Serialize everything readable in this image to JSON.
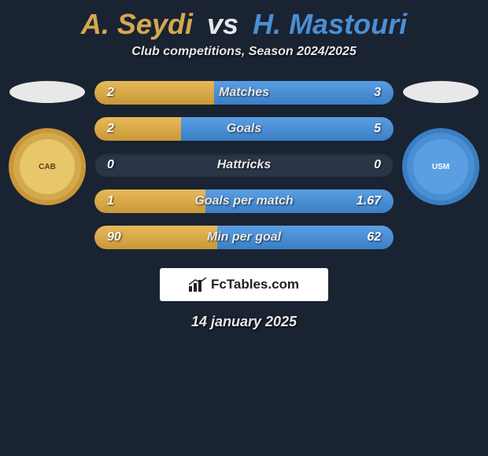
{
  "title": {
    "playerA": "A. Seydi",
    "vs": "vs",
    "playerB": "H. Mastouri",
    "colorA": "#d4a94e",
    "colorB": "#4a8fd4"
  },
  "subtitle": "Club competitions, Season 2024/2025",
  "rows": [
    {
      "label": "Matches",
      "a": "2",
      "b": "3",
      "pctA": 40,
      "pctB": 60
    },
    {
      "label": "Goals",
      "a": "2",
      "b": "5",
      "pctA": 29,
      "pctB": 71
    },
    {
      "label": "Hattricks",
      "a": "0",
      "b": "0",
      "pctA": 0,
      "pctB": 0
    },
    {
      "label": "Goals per match",
      "a": "1",
      "b": "1.67",
      "pctA": 37,
      "pctB": 63
    },
    {
      "label": "Min per goal",
      "a": "90",
      "b": "62",
      "pctA": 41,
      "pctB": 59
    }
  ],
  "brand": "FcTables.com",
  "date": "14 january 2025",
  "logos": {
    "a": "CAB",
    "b": "USM"
  },
  "style": {
    "bg": "#1a2332",
    "barTrack": "#2a3648",
    "fillA": [
      "#e8b95a",
      "#c89838"
    ],
    "fillB": [
      "#5a9fe4",
      "#3a7fc4"
    ],
    "barHeight": 30,
    "barGap": 16,
    "barRadius": 15,
    "title_fontsize": 36,
    "subtitle_fontsize": 16,
    "brand_bg": "#ffffff",
    "brand_color": "#222222",
    "ellipse_bg": "#e8e8e8"
  }
}
